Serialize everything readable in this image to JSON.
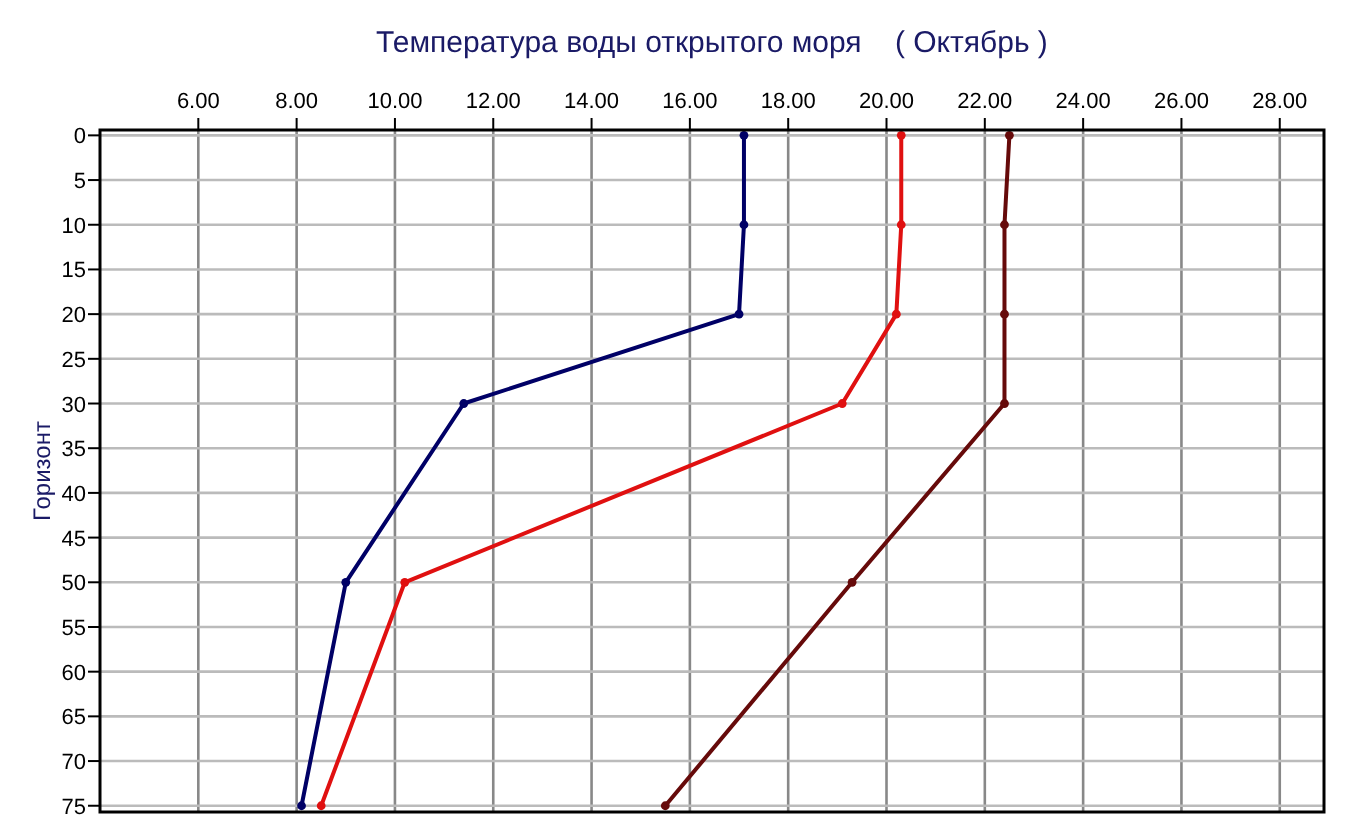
{
  "chart_data": {
    "type": "line",
    "title": "Температура воды открытого моря    ( Октябрь )",
    "ylabel": "Горизонт",
    "series": [
      {
        "color": "#000066",
        "x": [
          17.1,
          17.1,
          17.0,
          11.4,
          9.0,
          8.1
        ],
        "values": [
          0,
          10,
          20,
          30,
          50,
          75
        ]
      },
      {
        "color": "#e01010",
        "x": [
          20.3,
          20.3,
          20.2,
          19.1,
          10.2,
          8.5
        ],
        "values": [
          0,
          10,
          20,
          30,
          50,
          75
        ]
      },
      {
        "color": "#660a0a",
        "x": [
          22.5,
          22.4,
          22.4,
          22.4,
          19.3,
          15.5
        ],
        "values": [
          0,
          10,
          20,
          30,
          50,
          75
        ]
      }
    ],
    "xlim": [
      4,
      28.9
    ],
    "xticks": [
      {
        "value": 6,
        "label": "6.00"
      },
      {
        "value": 8,
        "label": "8.00"
      },
      {
        "value": 10,
        "label": "10.00"
      },
      {
        "value": 12,
        "label": "12.00"
      },
      {
        "value": 14,
        "label": "14.00"
      },
      {
        "value": 16,
        "label": "16.00"
      },
      {
        "value": 18,
        "label": "18.00"
      },
      {
        "value": 20,
        "label": "20.00"
      },
      {
        "value": 22,
        "label": "22.00"
      },
      {
        "value": 24,
        "label": "24.00"
      },
      {
        "value": 26,
        "label": "26.00"
      },
      {
        "value": 28,
        "label": "28.00"
      }
    ],
    "ylim": [
      75.7,
      -0.6
    ],
    "yticks": [
      0,
      5,
      10,
      15,
      20,
      25,
      30,
      35,
      40,
      45,
      50,
      55,
      60,
      65,
      70,
      75
    ],
    "grid": true,
    "marker": "circle"
  }
}
